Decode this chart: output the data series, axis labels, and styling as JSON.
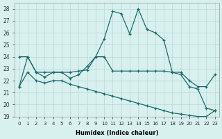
{
  "xlabel": "Humidex (Indice chaleur)",
  "background_color": "#d8f0ee",
  "grid_color": "#b8d8d5",
  "line_color": "#1a6b6b",
  "xlim": [
    -0.5,
    23.5
  ],
  "ylim": [
    19,
    28.5
  ],
  "yticks": [
    19,
    20,
    21,
    22,
    23,
    24,
    25,
    26,
    27,
    28
  ],
  "xticks": [
    0,
    1,
    2,
    3,
    4,
    5,
    6,
    7,
    8,
    9,
    10,
    11,
    12,
    13,
    14,
    15,
    16,
    17,
    18,
    19,
    20,
    21,
    22,
    23
  ],
  "line1_x": [
    0,
    1,
    2,
    3,
    4,
    5,
    6,
    7,
    8,
    9,
    10,
    11,
    12,
    13,
    14,
    15,
    16,
    17,
    18,
    19,
    20,
    21,
    22,
    23
  ],
  "line1_y": [
    21.5,
    24.0,
    22.7,
    22.3,
    22.7,
    22.7,
    22.2,
    22.5,
    23.2,
    24.0,
    25.5,
    27.8,
    27.6,
    25.9,
    28.0,
    26.3,
    26.0,
    25.4,
    22.7,
    22.5,
    21.5,
    21.3,
    19.7,
    19.5
  ],
  "line2_x": [
    0,
    1,
    2,
    3,
    4,
    5,
    6,
    7,
    8,
    9,
    10,
    11,
    12,
    13,
    14,
    15,
    16,
    17,
    18,
    19,
    20,
    21,
    22,
    23
  ],
  "line2_y": [
    24.0,
    24.0,
    22.7,
    22.7,
    22.7,
    22.7,
    22.7,
    22.8,
    22.9,
    24.0,
    24.0,
    22.8,
    22.8,
    22.8,
    22.8,
    22.8,
    22.8,
    22.8,
    22.7,
    22.7,
    22.0,
    21.5,
    21.5,
    22.5
  ],
  "line3_x": [
    0,
    1,
    2,
    3,
    4,
    5,
    6,
    7,
    8,
    9,
    10,
    11,
    12,
    13,
    14,
    15,
    16,
    17,
    18,
    19,
    20,
    21,
    22,
    23
  ],
  "line3_y": [
    21.5,
    22.7,
    22.0,
    21.8,
    22.0,
    22.0,
    21.7,
    21.5,
    21.3,
    21.1,
    20.9,
    20.7,
    20.5,
    20.3,
    20.1,
    19.9,
    19.7,
    19.5,
    19.3,
    19.2,
    19.1,
    19.0,
    19.0,
    19.5
  ]
}
